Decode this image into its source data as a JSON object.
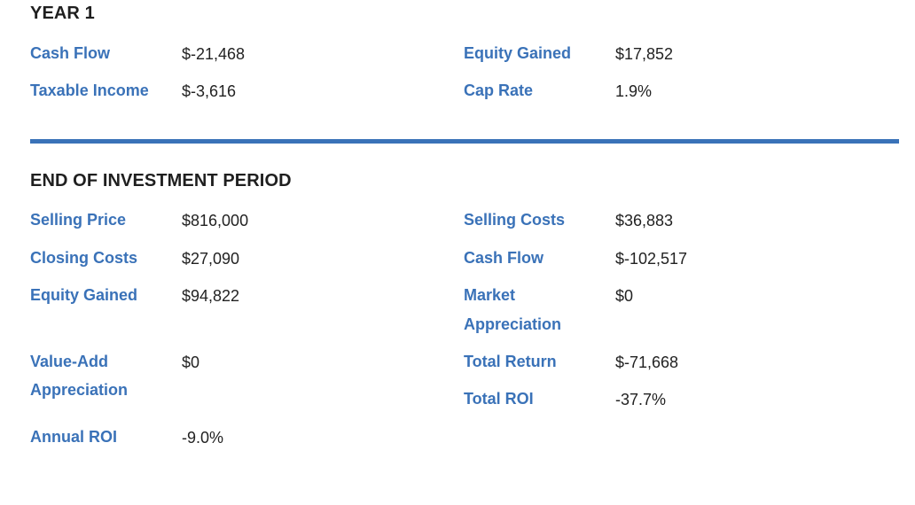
{
  "year1": {
    "title": "YEAR 1",
    "cash_flow_label": "Cash Flow",
    "cash_flow_value": "$-21,468",
    "taxable_income_label": "Taxable Income",
    "taxable_income_value": "$-3,616",
    "equity_gained_label": "Equity Gained",
    "equity_gained_value": "$17,852",
    "cap_rate_label": "Cap Rate",
    "cap_rate_value": "1.9%"
  },
  "end_period": {
    "title": "END OF INVESTMENT PERIOD",
    "selling_price_label": "Selling Price",
    "selling_price_value": "$816,000",
    "closing_costs_label": "Closing Costs",
    "closing_costs_value": "$27,090",
    "equity_gained_label": "Equity Gained",
    "equity_gained_value": "$94,822",
    "value_add_label_line1": "Value-Add",
    "value_add_label_line2": "Appreciation",
    "value_add_value": "$0",
    "annual_roi_label": "Annual ROI",
    "annual_roi_value": "-9.0%",
    "selling_costs_label": "Selling Costs",
    "selling_costs_value": "$36,883",
    "cash_flow_label": "Cash Flow",
    "cash_flow_value": "$-102,517",
    "market_appreciation_label_line1": "Market",
    "market_appreciation_label_line2": "Appreciation",
    "market_appreciation_value": "$0",
    "total_return_label": "Total Return",
    "total_return_value": "$-71,668",
    "total_roi_label": "Total ROI",
    "total_roi_value": "-37.7%"
  },
  "colors": {
    "label": "#3a72b8",
    "divider": "#3a72b8",
    "value": "#222222",
    "title": "#1f1f1f"
  }
}
